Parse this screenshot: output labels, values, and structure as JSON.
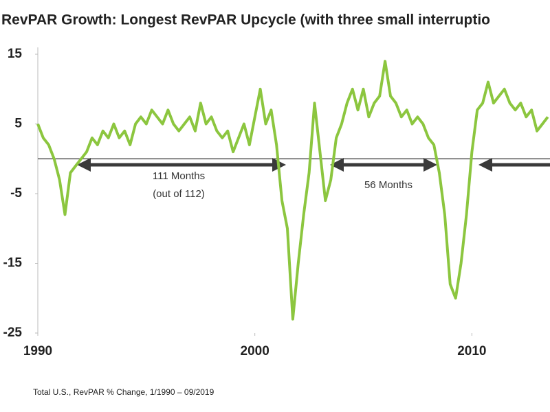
{
  "chart_data": {
    "type": "line",
    "title": "RevPAR Growth: Longest RevPAR Upcycle (with three small interruptio",
    "footnote": "Total U.S., RevPAR % Change,  1/1990 – 09/2019",
    "annotations": [
      "111 Months",
      "(out of 112)",
      "56 Months"
    ],
    "xlim": [
      1990,
      2013.6
    ],
    "xticks": [
      1990,
      2000,
      2010
    ],
    "ylim": [
      -25,
      15
    ],
    "yticks": [
      15,
      5,
      -5,
      -15,
      -25
    ],
    "series": [
      {
        "color": "#8cc63f",
        "x": [
          1990,
          1990.25,
          1990.5,
          1990.75,
          1991,
          1991.25,
          1991.5,
          1991.75,
          1992,
          1992.25,
          1992.5,
          1992.75,
          1993,
          1993.25,
          1993.5,
          1993.75,
          1994,
          1994.25,
          1994.5,
          1994.75,
          1995,
          1995.25,
          1995.5,
          1995.75,
          1996,
          1996.25,
          1996.5,
          1996.75,
          1997,
          1997.25,
          1997.5,
          1997.75,
          1998,
          1998.25,
          1998.5,
          1998.75,
          1999,
          1999.25,
          1999.5,
          1999.75,
          2000,
          2000.25,
          2000.5,
          2000.75,
          2001,
          2001.25,
          2001.5,
          2001.75,
          2002,
          2002.25,
          2002.5,
          2002.75,
          2003,
          2003.25,
          2003.5,
          2003.75,
          2004,
          2004.25,
          2004.5,
          2004.75,
          2005,
          2005.25,
          2005.5,
          2005.75,
          2006,
          2006.25,
          2006.5,
          2006.75,
          2007,
          2007.25,
          2007.5,
          2007.75,
          2008,
          2008.25,
          2008.5,
          2008.75,
          2009,
          2009.25,
          2009.5,
          2009.75,
          2010,
          2010.25,
          2010.5,
          2010.75,
          2011,
          2011.25,
          2011.5,
          2011.75,
          2012,
          2012.25,
          2012.5,
          2012.75,
          2013,
          2013.25,
          2013.5
        ],
        "values": [
          5,
          3,
          2,
          0,
          -3,
          -8,
          -2,
          -1,
          0,
          1,
          3,
          2,
          4,
          3,
          5,
          3,
          4,
          2,
          5,
          6,
          5,
          7,
          6,
          5,
          7,
          5,
          4,
          5,
          6,
          4,
          8,
          5,
          6,
          4,
          3,
          4,
          1,
          3,
          5,
          2,
          6,
          10,
          5,
          7,
          2,
          -6,
          -10,
          -23,
          -15,
          -8,
          -2,
          8,
          1,
          -6,
          -3,
          3,
          5,
          8,
          10,
          7,
          10,
          6,
          8,
          9,
          14,
          9,
          8,
          6,
          7,
          5,
          6,
          5,
          3,
          2,
          -2,
          -8,
          -18,
          -20,
          -15,
          -8,
          1,
          7,
          8,
          11,
          8,
          9,
          10,
          8,
          7,
          8,
          6,
          7,
          4,
          5,
          6
        ]
      }
    ]
  }
}
